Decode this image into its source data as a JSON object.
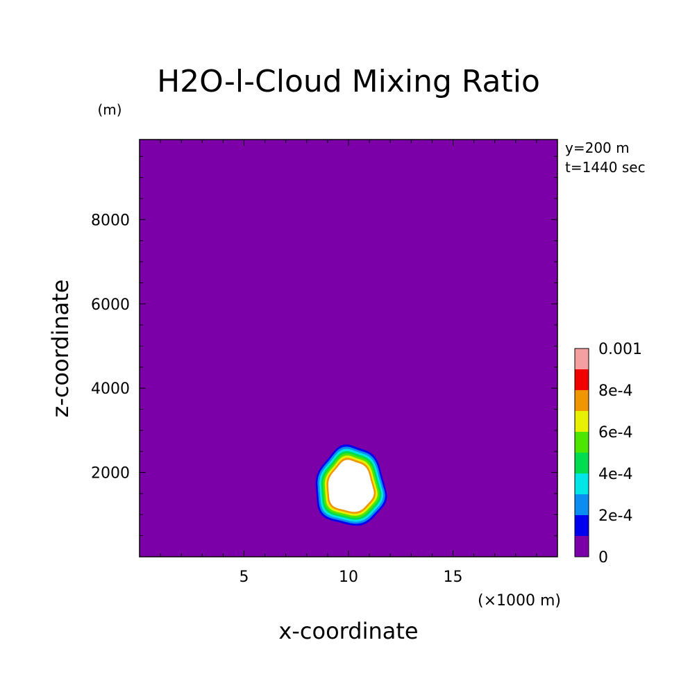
{
  "chart_data": {
    "type": "contour",
    "title": "H2O-l-Cloud Mixing Ratio",
    "xlabel": "x-coordinate",
    "ylabel": "z-coordinate",
    "x_unit": "(×1000 m)",
    "y_unit": "(m)",
    "xlim": [
      0,
      20
    ],
    "ylim": [
      0,
      9900
    ],
    "x_major_ticks": [
      5,
      10,
      15
    ],
    "x_tick_labels": [
      "5",
      "10",
      "15"
    ],
    "y_major_ticks": [
      2000,
      4000,
      6000,
      8000
    ],
    "y_tick_labels": [
      "2000",
      "4000",
      "6000",
      "8000"
    ],
    "annotation": [
      "y=200 m",
      "t=1440 sec"
    ],
    "colorbar": {
      "levels": [
        0,
        0.0001,
        0.0002,
        0.0003,
        0.0004,
        0.0005,
        0.0006,
        0.0007,
        0.0008,
        0.0009,
        0.001
      ],
      "colors": [
        "#7b00a8",
        "#0000ee",
        "#0a8cf0",
        "#00e6e6",
        "#00dc50",
        "#4ee600",
        "#e6f000",
        "#f09600",
        "#f00000",
        "#f5a0a0"
      ],
      "labels": [
        "0",
        "2e-4",
        "4e-4",
        "6e-4",
        "8e-4",
        "0.001"
      ],
      "above_max_color": "#ffffff"
    },
    "field": {
      "background_value": 0,
      "feature": "cloud",
      "center_x_km": 10.1,
      "center_z_m": 1650,
      "top_z_m": 2650,
      "bottom_z_m": 750,
      "left_x_km": 8.2,
      "right_x_km": 12.1,
      "core_value": "> 0.001"
    }
  }
}
